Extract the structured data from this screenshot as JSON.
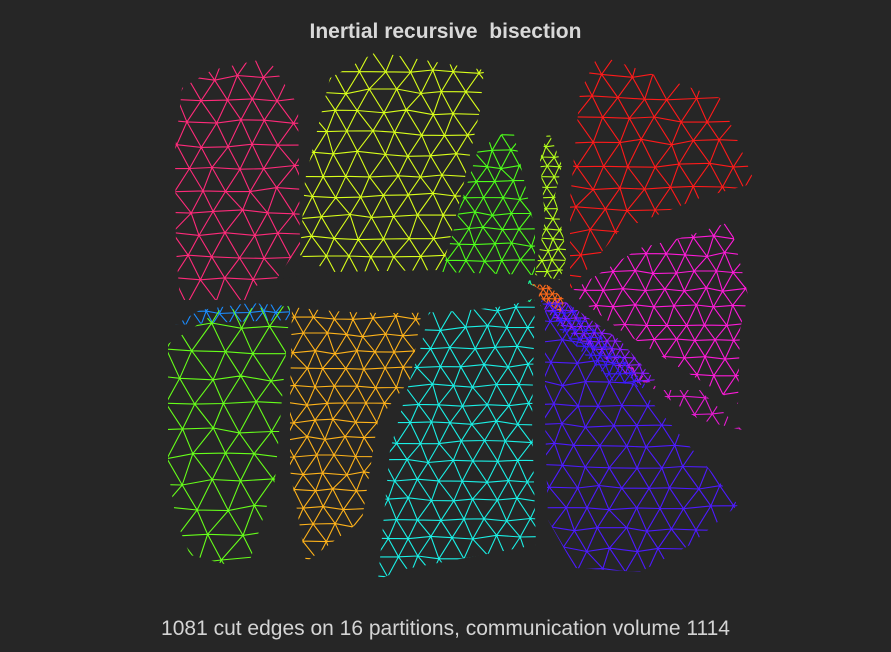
{
  "figure": {
    "title": "Inertial recursive  bisection",
    "caption": "1081 cut edges on 16 partitions, communication volume 1114"
  },
  "partitions": [
    {
      "id": "p01",
      "color": "#ff2a7a"
    },
    {
      "id": "p02",
      "color": "#d9ff1a"
    },
    {
      "id": "p03",
      "color": "#4dff1a"
    },
    {
      "id": "p04",
      "color": "#b3ff1a"
    },
    {
      "id": "p05",
      "color": "#ff1a1a"
    },
    {
      "id": "p06",
      "color": "#ff1ad9"
    },
    {
      "id": "p07",
      "color": "#e61ad1"
    },
    {
      "id": "p08",
      "color": "#1a8cff"
    },
    {
      "id": "p09",
      "color": "#66ff1a"
    },
    {
      "id": "p10",
      "color": "#ffb31a"
    },
    {
      "id": "p11",
      "color": "#1af0e6"
    },
    {
      "id": "p12",
      "color": "#4d1aff"
    },
    {
      "id": "p13",
      "color": "#8c1aff"
    },
    {
      "id": "p14",
      "color": "#ff6a1a"
    },
    {
      "id": "p15",
      "color": "#1affa0"
    },
    {
      "id": "p16",
      "color": "#3a1aff"
    }
  ]
}
